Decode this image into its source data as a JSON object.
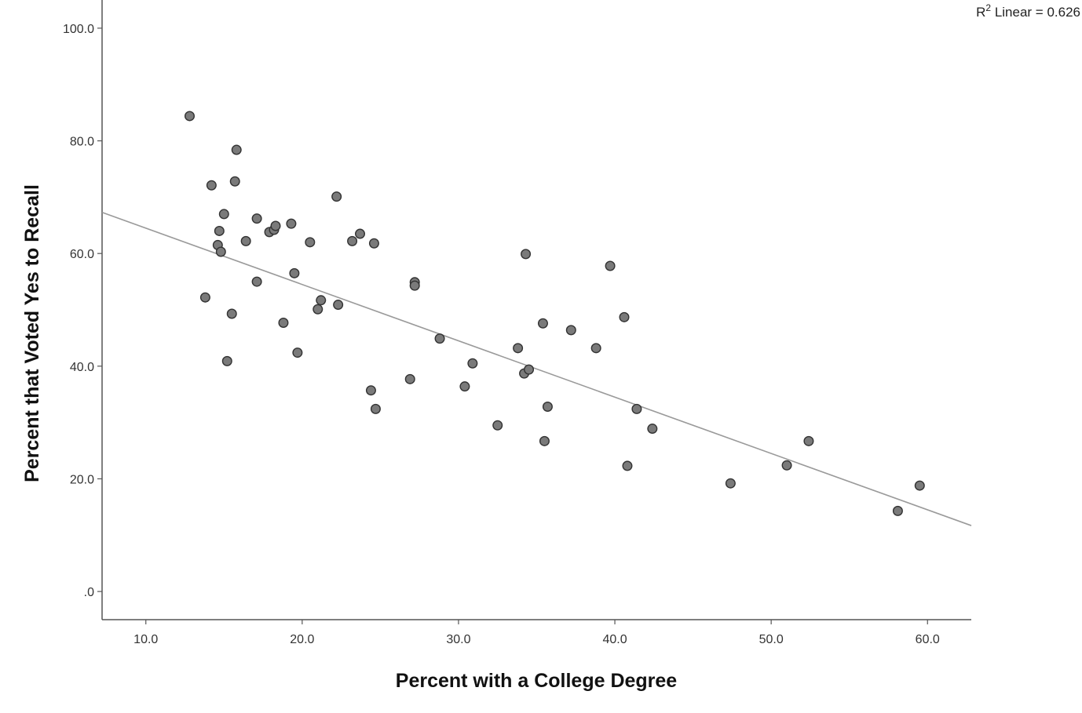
{
  "chart_data": {
    "type": "scatter",
    "xlabel": "Percent with a College Degree",
    "ylabel": "Percent that Voted Yes to Recall",
    "xlim": [
      7.2,
      62.8
    ],
    "ylim": [
      -5,
      105
    ],
    "x_ticks": [
      10,
      20,
      30,
      40,
      50,
      60
    ],
    "x_tick_labels": [
      "10.0",
      "20.0",
      "30.0",
      "40.0",
      "50.0",
      "60.0"
    ],
    "y_ticks": [
      0,
      20,
      40,
      60,
      80,
      100
    ],
    "y_tick_labels": [
      ".0",
      "20.0",
      "40.0",
      "60.0",
      "80.0",
      "100.0"
    ],
    "grid": false,
    "fit_line": {
      "type": "linear",
      "intercept": 74.5,
      "slope": -1.0,
      "label_prefix": "R",
      "label_sup": "2",
      "label_text": " Linear = 0.626"
    },
    "colors": {
      "point_fill": "#7a7a7a",
      "point_stroke": "#333333",
      "fit_line": "#9a9a9a",
      "axis": "#555555"
    },
    "points": [
      [
        12.8,
        84.4
      ],
      [
        13.8,
        52.2
      ],
      [
        14.2,
        72.1
      ],
      [
        14.6,
        61.5
      ],
      [
        14.7,
        64.0
      ],
      [
        14.8,
        60.3
      ],
      [
        15.0,
        67.0
      ],
      [
        15.2,
        40.9
      ],
      [
        15.5,
        49.3
      ],
      [
        15.7,
        72.8
      ],
      [
        15.8,
        78.4
      ],
      [
        16.4,
        62.2
      ],
      [
        17.1,
        66.2
      ],
      [
        17.1,
        55.0
      ],
      [
        17.9,
        63.8
      ],
      [
        18.2,
        64.2
      ],
      [
        18.3,
        64.9
      ],
      [
        18.8,
        47.7
      ],
      [
        19.3,
        65.3
      ],
      [
        19.5,
        56.5
      ],
      [
        19.7,
        42.4
      ],
      [
        20.5,
        62.0
      ],
      [
        21.0,
        50.1
      ],
      [
        21.2,
        51.7
      ],
      [
        22.2,
        70.1
      ],
      [
        22.3,
        50.9
      ],
      [
        23.2,
        62.2
      ],
      [
        23.7,
        63.5
      ],
      [
        24.4,
        35.7
      ],
      [
        24.6,
        61.8
      ],
      [
        24.7,
        32.4
      ],
      [
        26.9,
        37.7
      ],
      [
        27.2,
        54.9
      ],
      [
        27.2,
        54.3
      ],
      [
        28.8,
        44.9
      ],
      [
        30.4,
        36.4
      ],
      [
        30.9,
        40.5
      ],
      [
        32.5,
        29.5
      ],
      [
        33.8,
        43.2
      ],
      [
        34.2,
        38.7
      ],
      [
        34.3,
        59.9
      ],
      [
        34.5,
        39.4
      ],
      [
        35.4,
        47.6
      ],
      [
        35.5,
        26.7
      ],
      [
        35.7,
        32.8
      ],
      [
        37.2,
        46.4
      ],
      [
        38.8,
        43.2
      ],
      [
        39.7,
        57.8
      ],
      [
        40.6,
        48.7
      ],
      [
        40.8,
        22.3
      ],
      [
        41.4,
        32.4
      ],
      [
        42.4,
        28.9
      ],
      [
        47.4,
        19.2
      ],
      [
        51.0,
        22.4
      ],
      [
        52.4,
        26.7
      ],
      [
        58.1,
        14.3
      ],
      [
        59.5,
        18.8
      ]
    ]
  }
}
